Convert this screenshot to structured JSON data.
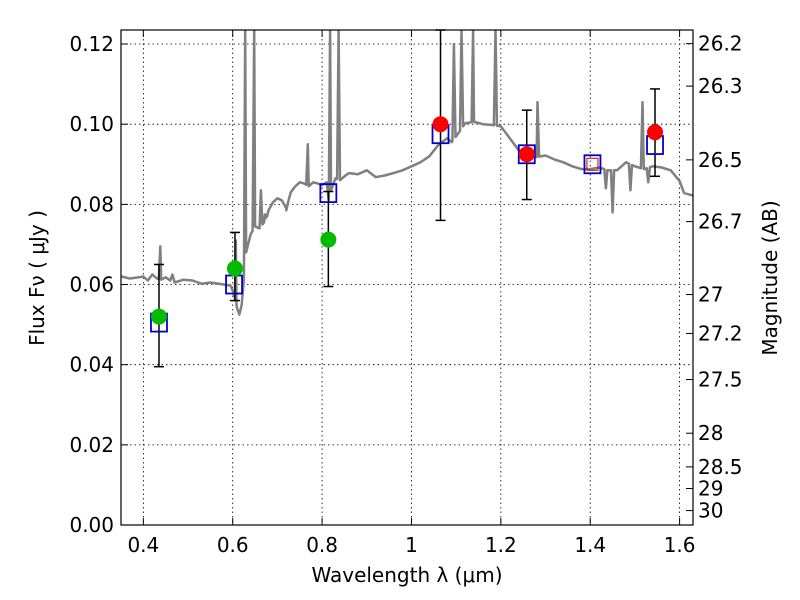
{
  "chart_data": {
    "type": "scatter",
    "title": "",
    "xlabel": "Wavelength  λ (μm)",
    "ylabel": "Flux  Fν  ( μJy )",
    "ylabel_right": "Magnitude (AB)",
    "xlim": [
      0.35,
      1.63
    ],
    "ylim": [
      0.0,
      0.1235
    ],
    "grid": true,
    "x_ticks": [
      0.4,
      0.6,
      0.8,
      1.0,
      1.2,
      1.4,
      1.6
    ],
    "x_tick_labels": [
      "0.4",
      "0.6",
      "0.8",
      "1",
      "1.2",
      "1.4",
      "1.6"
    ],
    "y_ticks": [
      0.0,
      0.02,
      0.04,
      0.06,
      0.08,
      0.1,
      0.12
    ],
    "y_tick_labels": [
      "0.00",
      "0.02",
      "0.04",
      "0.06",
      "0.08",
      "0.10",
      "0.12"
    ],
    "right_ticks": [
      {
        "flux": 0.1201,
        "label": "26.2"
      },
      {
        "flux": 0.1095,
        "label": "26.3"
      },
      {
        "flux": 0.0911,
        "label": "26.5"
      },
      {
        "flux": 0.0757,
        "label": "26.7"
      },
      {
        "flux": 0.0575,
        "label": "27"
      },
      {
        "flux": 0.0478,
        "label": "27.2"
      },
      {
        "flux": 0.0363,
        "label": "27.5"
      },
      {
        "flux": 0.0229,
        "label": "28"
      },
      {
        "flux": 0.0145,
        "label": "28.5"
      },
      {
        "flux": 0.0091,
        "label": "29"
      },
      {
        "flux": 0.0036,
        "label": "30"
      }
    ],
    "series": [
      {
        "kind": "spectrum",
        "color": "#808080",
        "points": [
          [
            0.35,
            0.062
          ],
          [
            0.37,
            0.0615
          ],
          [
            0.39,
            0.0618
          ],
          [
            0.4,
            0.062
          ],
          [
            0.41,
            0.061
          ],
          [
            0.42,
            0.0625
          ],
          [
            0.43,
            0.0615
          ],
          [
            0.44,
            0.0612
          ],
          [
            0.45,
            0.0618
          ],
          [
            0.46,
            0.061
          ],
          [
            0.465,
            0.0625
          ],
          [
            0.47,
            0.0605
          ],
          [
            0.49,
            0.0612
          ],
          [
            0.51,
            0.061
          ],
          [
            0.53,
            0.0602
          ],
          [
            0.55,
            0.0605
          ],
          [
            0.58,
            0.06
          ],
          [
            0.595,
            0.0597
          ],
          [
            0.6,
            0.0585
          ],
          [
            0.605,
            0.0565
          ],
          [
            0.61,
            0.054
          ],
          [
            0.615,
            0.0525
          ],
          [
            0.62,
            0.055
          ],
          [
            0.625,
            0.0615
          ],
          [
            0.63,
            0.068
          ],
          [
            0.64,
            0.0725
          ],
          [
            0.65,
            0.0745
          ],
          [
            0.66,
            0.074
          ],
          [
            0.67,
            0.0755
          ],
          [
            0.68,
            0.0785
          ],
          [
            0.69,
            0.0805
          ],
          [
            0.7,
            0.0815
          ],
          [
            0.71,
            0.081
          ],
          [
            0.72,
            0.079
          ],
          [
            0.73,
            0.083
          ],
          [
            0.74,
            0.0845
          ],
          [
            0.75,
            0.0855
          ],
          [
            0.76,
            0.0852
          ],
          [
            0.77,
            0.0845
          ],
          [
            0.78,
            0.0855
          ],
          [
            0.79,
            0.0852
          ],
          [
            0.8,
            0.0848
          ],
          [
            0.81,
            0.0855
          ],
          [
            0.815,
            0.081
          ],
          [
            0.82,
            0.0835
          ],
          [
            0.83,
            0.0865
          ],
          [
            0.84,
            0.086
          ],
          [
            0.85,
            0.087
          ],
          [
            0.86,
            0.0878
          ],
          [
            0.88,
            0.0875
          ],
          [
            0.9,
            0.0885
          ],
          [
            0.92,
            0.0868
          ],
          [
            0.94,
            0.0872
          ],
          [
            0.96,
            0.0878
          ],
          [
            0.98,
            0.0885
          ],
          [
            1.0,
            0.0895
          ],
          [
            1.02,
            0.0905
          ],
          [
            1.04,
            0.092
          ],
          [
            1.06,
            0.0948
          ],
          [
            1.08,
            0.0965
          ],
          [
            1.09,
            0.0955
          ],
          [
            1.1,
            0.097
          ],
          [
            1.12,
            0.1002
          ],
          [
            1.14,
            0.1006
          ],
          [
            1.16,
            0.1
          ],
          [
            1.18,
            0.0998
          ],
          [
            1.2,
            0.0995
          ],
          [
            1.22,
            0.0965
          ],
          [
            1.24,
            0.0935
          ],
          [
            1.26,
            0.0928
          ],
          [
            1.28,
            0.0918
          ],
          [
            1.3,
            0.0922
          ],
          [
            1.32,
            0.0912
          ],
          [
            1.34,
            0.0905
          ],
          [
            1.36,
            0.0895
          ],
          [
            1.38,
            0.0888
          ],
          [
            1.4,
            0.0888
          ],
          [
            1.42,
            0.0892
          ],
          [
            1.44,
            0.0885
          ],
          [
            1.46,
            0.0885
          ],
          [
            1.48,
            0.0905
          ],
          [
            1.5,
            0.0895
          ],
          [
            1.52,
            0.0888
          ],
          [
            1.54,
            0.0895
          ],
          [
            1.56,
            0.0892
          ],
          [
            1.58,
            0.0885
          ],
          [
            1.6,
            0.0858
          ],
          [
            1.61,
            0.0828
          ],
          [
            1.63,
            0.0822
          ]
        ],
        "spikes": [
          {
            "x": 0.438,
            "y": 0.0695
          },
          {
            "x": 0.607,
            "y": 0.071
          },
          {
            "x": 0.628,
            "y": 0.1235
          },
          {
            "x": 0.648,
            "y": 0.1235
          },
          {
            "x": 0.663,
            "y": 0.0835
          },
          {
            "x": 0.677,
            "y": 0.077
          },
          {
            "x": 0.72,
            "y": 0.0785
          },
          {
            "x": 0.768,
            "y": 0.095
          },
          {
            "x": 0.818,
            "y": 0.1235
          },
          {
            "x": 0.837,
            "y": 0.1235
          },
          {
            "x": 1.095,
            "y": 0.12
          },
          {
            "x": 1.112,
            "y": 0.1235
          },
          {
            "x": 1.138,
            "y": 0.1235
          },
          {
            "x": 1.188,
            "y": 0.1235
          },
          {
            "x": 1.282,
            "y": 0.1055
          },
          {
            "x": 1.517,
            "y": 0.1055
          }
        ],
        "dips": [
          {
            "x": 0.605,
            "y": 0.056
          },
          {
            "x": 0.672,
            "y": 0.0775
          },
          {
            "x": 1.435,
            "y": 0.084
          },
          {
            "x": 1.45,
            "y": 0.078
          },
          {
            "x": 1.49,
            "y": 0.0835
          },
          {
            "x": 1.53,
            "y": 0.0855
          }
        ]
      },
      {
        "kind": "model-boxes",
        "color": "#0000cc",
        "points": [
          {
            "x": 0.435,
            "y": 0.0505
          },
          {
            "x": 0.603,
            "y": 0.06
          },
          {
            "x": 0.814,
            "y": 0.0828
          },
          {
            "x": 1.065,
            "y": 0.0975
          },
          {
            "x": 1.258,
            "y": 0.0925
          },
          {
            "x": 1.405,
            "y": 0.09
          },
          {
            "x": 1.545,
            "y": 0.0948
          }
        ]
      },
      {
        "kind": "observed-green",
        "color": "#00bb00",
        "points": [
          {
            "x": 0.435,
            "y": 0.052,
            "err_lo": 0.0395,
            "err_hi": 0.065
          },
          {
            "x": 0.605,
            "y": 0.064,
            "err_lo": 0.056,
            "err_hi": 0.073
          },
          {
            "x": 0.814,
            "y": 0.0712,
            "err_lo": 0.0595,
            "err_hi": 0.0832
          }
        ]
      },
      {
        "kind": "observed-red",
        "color": "#ff0000",
        "points": [
          {
            "x": 1.065,
            "y": 0.1,
            "err_lo": 0.076,
            "err_hi": 0.1235
          },
          {
            "x": 1.258,
            "y": 0.0925,
            "err_lo": 0.0812,
            "err_hi": 0.1035
          },
          {
            "x": 1.545,
            "y": 0.098,
            "err_lo": 0.087,
            "err_hi": 0.1088
          }
        ]
      },
      {
        "kind": "upper-limit-marker",
        "color": "#cc0000",
        "points": [
          {
            "x": 1.405,
            "y": 0.09
          }
        ]
      }
    ]
  }
}
